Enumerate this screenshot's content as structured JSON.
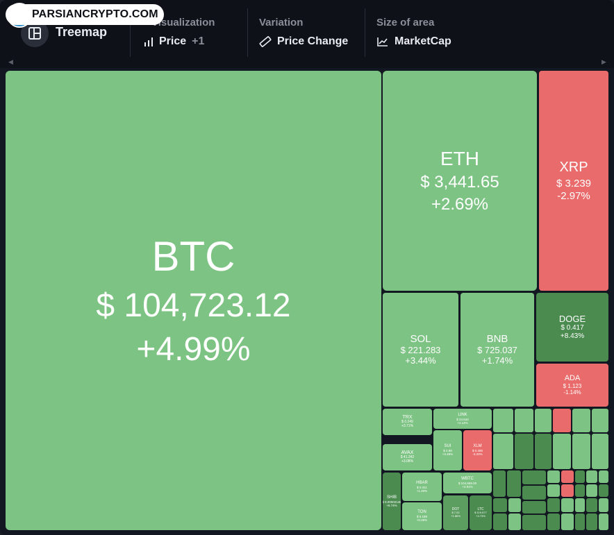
{
  "brand": {
    "badge_text": "PARSIANCRYPTO.COM"
  },
  "toolbar": {
    "title": "Treemap",
    "visualization": {
      "label": "Visualization",
      "value": "Price",
      "extra": "+1"
    },
    "variation": {
      "label": "Variation",
      "value": "Price Change"
    },
    "size": {
      "label": "Size of area",
      "value": "MarketCap"
    }
  },
  "colors": {
    "up": "#7dc383",
    "up_strong": "#4b8b50",
    "down": "#ea6b6b"
  },
  "tiles": [
    {
      "symbol": "BTC",
      "price": "$ 104,723.12",
      "change": "+4.99%"
    },
    {
      "symbol": "ETH",
      "price": "$ 3,441.65",
      "change": "+2.69%"
    },
    {
      "symbol": "XRP",
      "price": "$ 3.239",
      "change": "-2.97%"
    },
    {
      "symbol": "SOL",
      "price": "$ 221.283",
      "change": "+3.44%"
    },
    {
      "symbol": "BNB",
      "price": "$ 725.037",
      "change": "+1.74%"
    },
    {
      "symbol": "DOGE",
      "price": "$ 0.417",
      "change": "+8.43%"
    },
    {
      "symbol": "ADA",
      "price": "$ 1.123",
      "change": "-1.14%"
    },
    {
      "symbol": "TRX",
      "price": "$ 0.249",
      "change": "+3.71%"
    },
    {
      "symbol": "LINK",
      "price": "$ 24.544",
      "change": "+4.14%"
    },
    {
      "symbol": "AVAX",
      "price": "$ 41.342",
      "change": "+3.08%"
    },
    {
      "symbol": "SUI",
      "price": "$ 4.88",
      "change": "+3.48%"
    },
    {
      "symbol": "XLM",
      "price": "$ 0.485",
      "change": "-3.20%"
    },
    {
      "symbol": "HBAR",
      "price": "$ 0.311",
      "change": "+1.49%"
    },
    {
      "symbol": "WBTC",
      "price": "$ 104,669.00",
      "change": "+4.91%"
    },
    {
      "symbol": "SHIB",
      "price": "$ 0.00002148",
      "change": "+6.74%"
    },
    {
      "symbol": "TON",
      "price": "$ 5.188",
      "change": "+0.28%"
    },
    {
      "symbol": "DOT",
      "price": "$ 7.02",
      "change": "+1.86%"
    },
    {
      "symbol": "LTC",
      "price": "$ 119.677",
      "change": "+4.73%"
    }
  ]
}
